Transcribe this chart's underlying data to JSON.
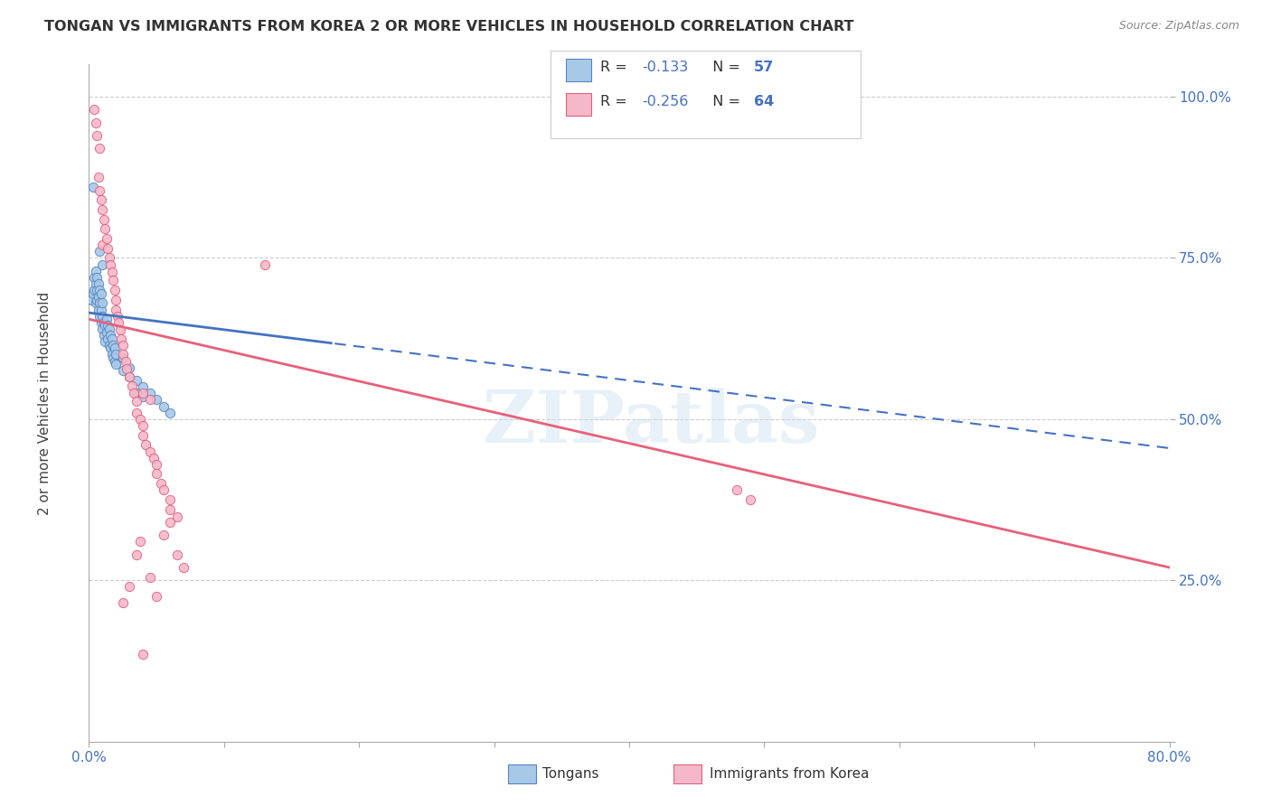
{
  "title": "TONGAN VS IMMIGRANTS FROM KOREA 2 OR MORE VEHICLES IN HOUSEHOLD CORRELATION CHART",
  "source": "Source: ZipAtlas.com",
  "ylabel": "2 or more Vehicles in Household",
  "xmin": 0.0,
  "xmax": 0.8,
  "ymin": 0.0,
  "ymax": 1.05,
  "ytick_positions": [
    0.0,
    0.25,
    0.5,
    0.75,
    1.0
  ],
  "ytick_labels": [
    "",
    "25.0%",
    "50.0%",
    "75.0%",
    "100.0%"
  ],
  "xtick_positions": [
    0.0,
    0.1,
    0.2,
    0.3,
    0.4,
    0.5,
    0.6,
    0.7,
    0.8
  ],
  "xtick_labels": [
    "0.0%",
    "",
    "",
    "",
    "",
    "",
    "",
    "",
    "80.0%"
  ],
  "watermark": "ZIPatlas",
  "tongan_color": "#a8c8e8",
  "korea_color": "#f5b8c8",
  "tongan_edge": "#5585c0",
  "korea_edge": "#e06080",
  "trendline_tongan_color": "#4472c4",
  "trendline_korea_color": "#e8607a",
  "tongan_scatter": [
    [
      0.002,
      0.685
    ],
    [
      0.003,
      0.695
    ],
    [
      0.004,
      0.7
    ],
    [
      0.004,
      0.72
    ],
    [
      0.005,
      0.68
    ],
    [
      0.005,
      0.71
    ],
    [
      0.005,
      0.73
    ],
    [
      0.006,
      0.685
    ],
    [
      0.006,
      0.7
    ],
    [
      0.006,
      0.72
    ],
    [
      0.007,
      0.67
    ],
    [
      0.007,
      0.69
    ],
    [
      0.007,
      0.71
    ],
    [
      0.008,
      0.66
    ],
    [
      0.008,
      0.68
    ],
    [
      0.008,
      0.7
    ],
    [
      0.009,
      0.65
    ],
    [
      0.009,
      0.67
    ],
    [
      0.009,
      0.695
    ],
    [
      0.01,
      0.64
    ],
    [
      0.01,
      0.66
    ],
    [
      0.01,
      0.68
    ],
    [
      0.011,
      0.63
    ],
    [
      0.011,
      0.65
    ],
    [
      0.012,
      0.62
    ],
    [
      0.012,
      0.645
    ],
    [
      0.013,
      0.635
    ],
    [
      0.013,
      0.655
    ],
    [
      0.014,
      0.625
    ],
    [
      0.014,
      0.645
    ],
    [
      0.015,
      0.615
    ],
    [
      0.015,
      0.64
    ],
    [
      0.016,
      0.61
    ],
    [
      0.016,
      0.63
    ],
    [
      0.017,
      0.6
    ],
    [
      0.017,
      0.625
    ],
    [
      0.018,
      0.595
    ],
    [
      0.018,
      0.615
    ],
    [
      0.019,
      0.59
    ],
    [
      0.019,
      0.61
    ],
    [
      0.02,
      0.585
    ],
    [
      0.02,
      0.6
    ],
    [
      0.025,
      0.575
    ],
    [
      0.025,
      0.595
    ],
    [
      0.03,
      0.565
    ],
    [
      0.03,
      0.58
    ],
    [
      0.035,
      0.56
    ],
    [
      0.04,
      0.55
    ],
    [
      0.045,
      0.54
    ],
    [
      0.05,
      0.53
    ],
    [
      0.055,
      0.52
    ],
    [
      0.06,
      0.51
    ],
    [
      0.003,
      0.86
    ],
    [
      0.008,
      0.76
    ],
    [
      0.01,
      0.74
    ],
    [
      0.035,
      0.54
    ],
    [
      0.04,
      0.535
    ]
  ],
  "korea_scatter": [
    [
      0.004,
      0.98
    ],
    [
      0.005,
      0.96
    ],
    [
      0.006,
      0.94
    ],
    [
      0.007,
      0.875
    ],
    [
      0.008,
      0.855
    ],
    [
      0.008,
      0.92
    ],
    [
      0.009,
      0.84
    ],
    [
      0.01,
      0.825
    ],
    [
      0.01,
      0.77
    ],
    [
      0.011,
      0.81
    ],
    [
      0.012,
      0.795
    ],
    [
      0.013,
      0.78
    ],
    [
      0.014,
      0.765
    ],
    [
      0.015,
      0.75
    ],
    [
      0.016,
      0.74
    ],
    [
      0.017,
      0.728
    ],
    [
      0.018,
      0.715
    ],
    [
      0.019,
      0.7
    ],
    [
      0.02,
      0.685
    ],
    [
      0.02,
      0.67
    ],
    [
      0.021,
      0.66
    ],
    [
      0.022,
      0.65
    ],
    [
      0.023,
      0.638
    ],
    [
      0.024,
      0.625
    ],
    [
      0.025,
      0.615
    ],
    [
      0.025,
      0.6
    ],
    [
      0.027,
      0.59
    ],
    [
      0.028,
      0.578
    ],
    [
      0.03,
      0.565
    ],
    [
      0.032,
      0.552
    ],
    [
      0.033,
      0.54
    ],
    [
      0.035,
      0.528
    ],
    [
      0.035,
      0.51
    ],
    [
      0.038,
      0.5
    ],
    [
      0.04,
      0.49
    ],
    [
      0.04,
      0.475
    ],
    [
      0.042,
      0.46
    ],
    [
      0.045,
      0.45
    ],
    [
      0.048,
      0.44
    ],
    [
      0.05,
      0.43
    ],
    [
      0.05,
      0.415
    ],
    [
      0.053,
      0.4
    ],
    [
      0.055,
      0.39
    ],
    [
      0.06,
      0.375
    ],
    [
      0.06,
      0.36
    ],
    [
      0.065,
      0.348
    ],
    [
      0.025,
      0.215
    ],
    [
      0.03,
      0.24
    ],
    [
      0.035,
      0.29
    ],
    [
      0.038,
      0.31
    ],
    [
      0.04,
      0.135
    ],
    [
      0.045,
      0.255
    ],
    [
      0.05,
      0.225
    ],
    [
      0.055,
      0.32
    ],
    [
      0.06,
      0.34
    ],
    [
      0.065,
      0.29
    ],
    [
      0.07,
      0.27
    ],
    [
      0.04,
      0.54
    ],
    [
      0.045,
      0.53
    ],
    [
      0.13,
      0.74
    ],
    [
      0.49,
      0.375
    ],
    [
      0.48,
      0.39
    ]
  ],
  "tongan_trend_x0": 0.0,
  "tongan_trend_y0": 0.665,
  "tongan_trend_x1": 0.8,
  "tongan_trend_y1": 0.455,
  "korea_trend_x0": 0.0,
  "korea_trend_y0": 0.655,
  "korea_trend_x1": 0.8,
  "korea_trend_y1": 0.27
}
